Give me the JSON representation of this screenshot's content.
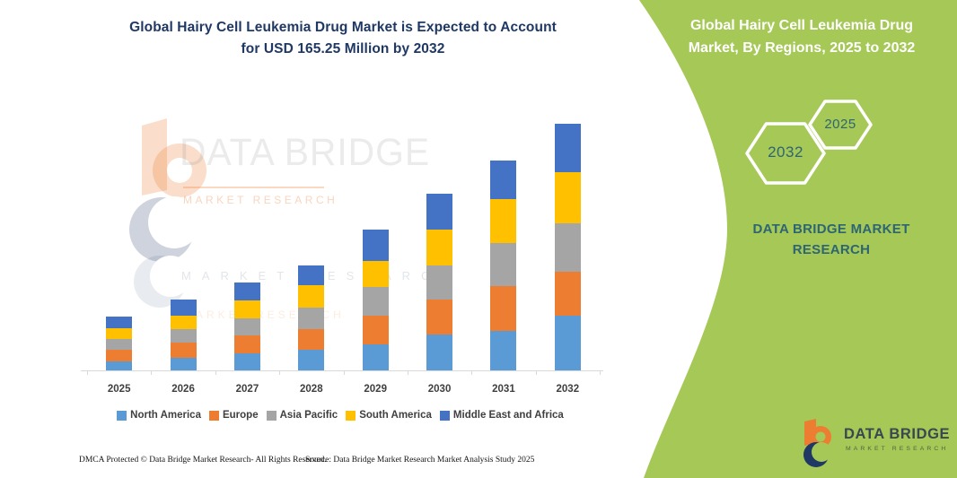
{
  "left_panel": {
    "title_line1": "Global Hairy Cell Leukemia Drug Market is Expected to Account",
    "title_line2": "for USD 165.25 Million by 2032",
    "footer_left": "DMCA Protected © Data Bridge Market Research- All Rights Reserved.",
    "footer_right": "Source: Data Bridge Market Research Market Analysis Study 2025"
  },
  "watermark": {
    "brand": "DATA BRIDGE",
    "sub": "MARKET RESEARCH",
    "tile2": "MARKET RESEARCH",
    "tile3": "MARKET RESEARCH"
  },
  "right_panel": {
    "title_line1": "Global Hairy Cell Leukemia Drug",
    "title_line2": "Market, By Regions, 2025 to 2032",
    "hexagons": {
      "back_label": "2032",
      "front_label": "2025"
    },
    "brand_line1": "DATA BRIDGE MARKET",
    "brand_line2": "RESEARCH",
    "footer_logo": {
      "title": "DATA BRIDGE",
      "subtitle": "MARKET RESEARCH"
    }
  },
  "chart_data": {
    "type": "bar",
    "stacked": true,
    "title": "Global Hairy Cell Leukemia Drug Market, By Regions, 2025 to 2032",
    "unit": "USD Million",
    "categories": [
      "2025",
      "2026",
      "2027",
      "2028",
      "2029",
      "2030",
      "2031",
      "2032"
    ],
    "series": [
      {
        "name": "North America",
        "color": "#5B9BD5",
        "values": [
          6.0,
          8.5,
          11.5,
          13.9,
          17.5,
          24.2,
          26.6,
          36.6
        ]
      },
      {
        "name": "Europe",
        "color": "#ED7D31",
        "values": [
          7.9,
          10.3,
          12.1,
          13.9,
          19.3,
          23.0,
          29.6,
          29.4
        ]
      },
      {
        "name": "Asia Pacific",
        "color": "#A5A5A5",
        "values": [
          7.2,
          9.1,
          11.5,
          14.5,
          19.3,
          23.0,
          29.0,
          32.65
        ]
      },
      {
        "name": "South America",
        "color": "#FFC000",
        "values": [
          7.2,
          9.1,
          12.1,
          15.1,
          17.5,
          24.2,
          29.6,
          34.1
        ]
      },
      {
        "name": "Middle East and Africa",
        "color": "#4472C4",
        "values": [
          7.9,
          10.3,
          12.1,
          13.3,
          21.1,
          24.2,
          26.0,
          32.5
        ]
      }
    ],
    "totals": [
      36.2,
      47.3,
      59.3,
      70.7,
      94.7,
      118.6,
      140.8,
      165.25
    ],
    "ylim": [
      0,
      170
    ],
    "grid": false,
    "legend_position": "bottom",
    "y_axis_visible": false
  },
  "colors": {
    "panel_green": "#a5c857",
    "title_navy": "#1f3864",
    "hexagon_outline": "#ffffff",
    "teal_text": "#2e6573",
    "axis_line": "#d9d9d9",
    "label_gray": "#3f3f3f"
  }
}
